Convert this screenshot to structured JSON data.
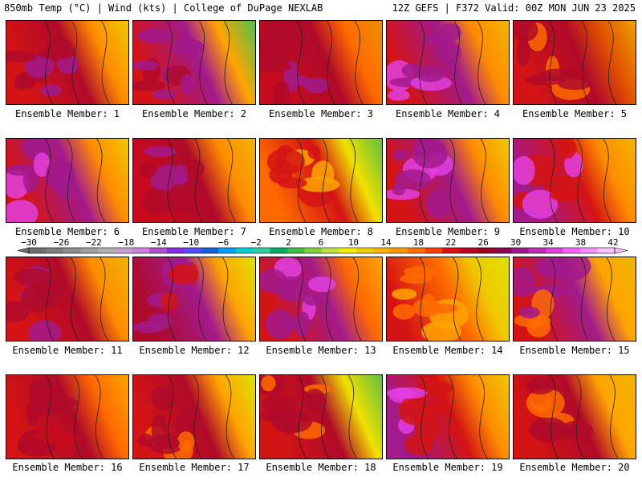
{
  "header": {
    "left": "850mb Temp (°C) | Wind (kts) | College of DuPage NEXLAB",
    "right": "12Z GEFS | F372 Valid: 00Z MON JUN 23 2025"
  },
  "panels": [
    {
      "label": "Ensemble Member: 1",
      "palette": [
        "#d41414",
        "#b00a2a",
        "#a21a8c",
        "#ff8c00",
        "#f0c800"
      ]
    },
    {
      "label": "Ensemble Member: 2",
      "palette": [
        "#d41414",
        "#a21a8c",
        "#b00a2a",
        "#ffa500",
        "#50c050"
      ]
    },
    {
      "label": "Ensemble Member: 3",
      "palette": [
        "#c80a1e",
        "#b00a2a",
        "#a21a8c",
        "#ff6a00",
        "#f09000"
      ]
    },
    {
      "label": "Ensemble Member: 4",
      "palette": [
        "#d41414",
        "#a21a8c",
        "#e040e0",
        "#ff8c00",
        "#f0b400"
      ]
    },
    {
      "label": "Ensemble Member: 5",
      "palette": [
        "#d41414",
        "#b00a2a",
        "#ff6a00",
        "#e05000",
        "#f0a000"
      ]
    },
    {
      "label": "Ensemble Member: 6",
      "palette": [
        "#d41414",
        "#a21a8c",
        "#e040e0",
        "#ff8c00",
        "#f0c800"
      ]
    },
    {
      "label": "Ensemble Member: 7",
      "palette": [
        "#c80a1e",
        "#b00a2a",
        "#a21a8c",
        "#ff8c00",
        "#f0b400"
      ]
    },
    {
      "label": "Ensemble Member: 8",
      "palette": [
        "#ff6a00",
        "#d41414",
        "#ffa500",
        "#f0e000",
        "#60c040"
      ]
    },
    {
      "label": "Ensemble Member: 9",
      "palette": [
        "#d41414",
        "#a21a8c",
        "#e040e0",
        "#ff8c00",
        "#f0c800"
      ]
    },
    {
      "label": "Ensemble Member: 10",
      "palette": [
        "#a21a8c",
        "#d41414",
        "#e040e0",
        "#ff8c00",
        "#f0b400"
      ]
    },
    {
      "label": "Ensemble Member: 11",
      "palette": [
        "#d41414",
        "#b00a2a",
        "#a21a8c",
        "#ff8c00",
        "#f0b400"
      ]
    },
    {
      "label": "Ensemble Member: 12",
      "palette": [
        "#b00a2a",
        "#a21a8c",
        "#d41414",
        "#ffa500",
        "#e0e000"
      ]
    },
    {
      "label": "Ensemble Member: 13",
      "palette": [
        "#d41414",
        "#a21a8c",
        "#e040e0",
        "#ff6a00",
        "#ffa500"
      ]
    },
    {
      "label": "Ensemble Member: 14",
      "palette": [
        "#d41414",
        "#ff6a00",
        "#ffa500",
        "#f0c800",
        "#e0e000"
      ]
    },
    {
      "label": "Ensemble Member: 15",
      "palette": [
        "#d41414",
        "#a21a8c",
        "#ff6a00",
        "#ffa500",
        "#f0b400"
      ]
    },
    {
      "label": "Ensemble Member: 16",
      "palette": [
        "#d41414",
        "#b00a2a",
        "#c80a1e",
        "#ff6a00",
        "#ffa500"
      ]
    },
    {
      "label": "Ensemble Member: 17",
      "palette": [
        "#d41414",
        "#b00a2a",
        "#ff6a00",
        "#ffa500",
        "#e0e000"
      ]
    },
    {
      "label": "Ensemble Member: 18",
      "palette": [
        "#d41414",
        "#b00a2a",
        "#ff6a00",
        "#f0e000",
        "#60c040"
      ]
    },
    {
      "label": "Ensemble Member: 19",
      "palette": [
        "#a21a8c",
        "#d41414",
        "#e040e0",
        "#ff8c00",
        "#f0c800"
      ]
    },
    {
      "label": "Ensemble Member: 20",
      "palette": [
        "#d41414",
        "#b00a2a",
        "#ff6a00",
        "#ffa500",
        "#f0b400"
      ]
    }
  ],
  "colorbar": {
    "labels": [
      "−30",
      "−26",
      "−22",
      "−18",
      "−14",
      "−10",
      "−6",
      "−2",
      "2",
      "6",
      "10",
      "14",
      "18",
      "22",
      "26",
      "30",
      "34",
      "38",
      "42"
    ],
    "colors": [
      "#6e6e6e",
      "#7e7e7e",
      "#8e8e8e",
      "#9e9e9e",
      "#b0b0b0",
      "#c8a0d8",
      "#d080e0",
      "#b050d0",
      "#8a2be2",
      "#5050ff",
      "#1060e0",
      "#00a0ff",
      "#00d0d0",
      "#30d0a0",
      "#00b060",
      "#40c040",
      "#80d040",
      "#c0e040",
      "#f0f000",
      "#f0d000",
      "#ffb400",
      "#ff9600",
      "#ff7000",
      "#ff4000",
      "#e01010",
      "#c00020",
      "#a00020",
      "#900050",
      "#a01890",
      "#c030b0",
      "#e040e0",
      "#ff60ff",
      "#ff90ff",
      "#ffc0ff"
    ]
  }
}
